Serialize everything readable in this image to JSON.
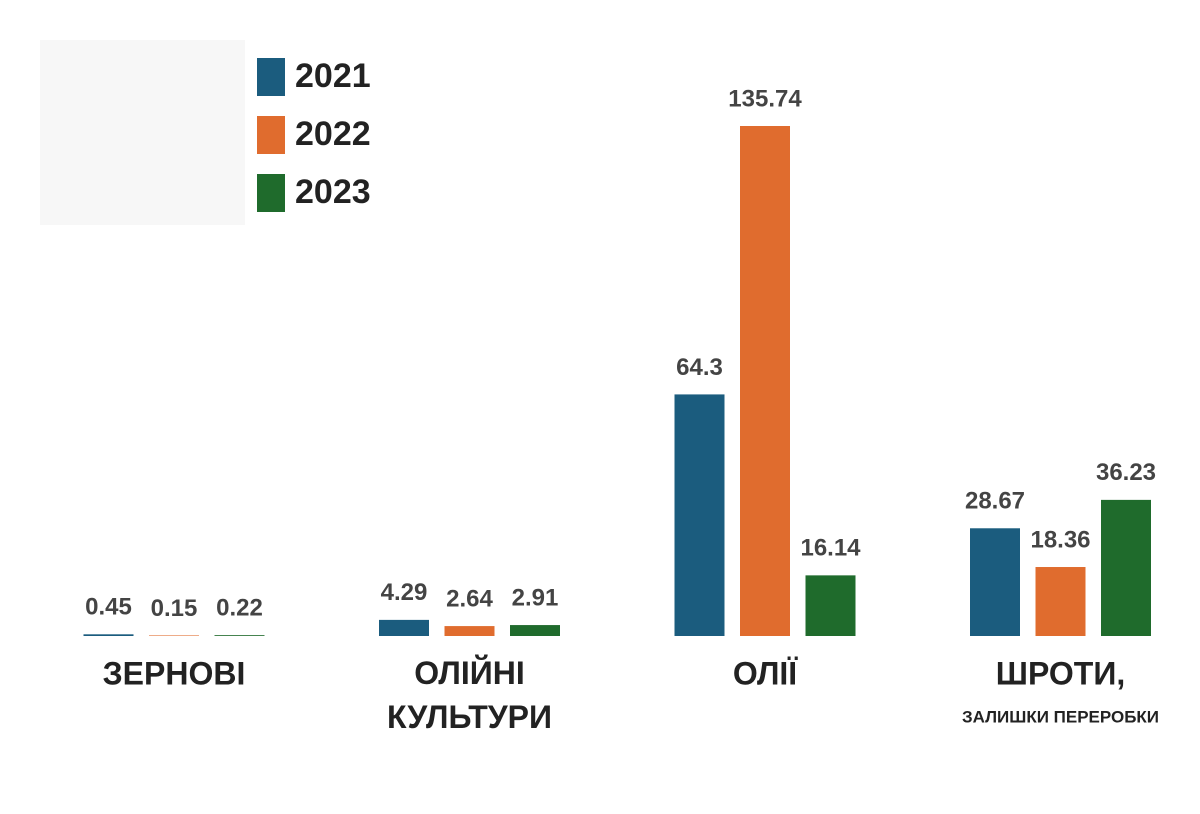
{
  "chart_data": {
    "type": "bar",
    "categories": [
      "ЗЕРНОВІ",
      "ОЛІЙНІ КУЛЬТУРИ",
      "ОЛІЇ",
      "ШРОТИ,"
    ],
    "category_sublabels": [
      null,
      null,
      null,
      "ЗАЛИШКИ ПЕРЕРОБКИ"
    ],
    "series": [
      {
        "name": "2021",
        "color": "#1b5c7e",
        "values": [
          0.45,
          4.29,
          64.3,
          28.67
        ]
      },
      {
        "name": "2022",
        "color": "#e06c2e",
        "values": [
          0.15,
          2.64,
          135.74,
          18.36
        ]
      },
      {
        "name": "2023",
        "color": "#1f6b2c",
        "values": [
          0.22,
          2.91,
          16.14,
          36.23
        ]
      }
    ],
    "legend": "top-left"
  }
}
